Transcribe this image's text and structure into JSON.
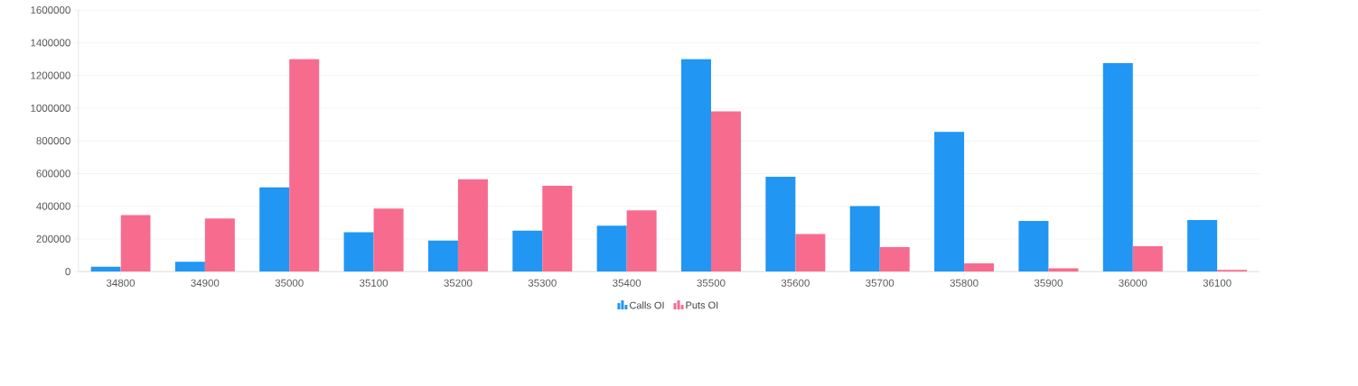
{
  "chart_data": {
    "type": "bar",
    "categories": [
      "34800",
      "34900",
      "35000",
      "35100",
      "35200",
      "35300",
      "35400",
      "35500",
      "35600",
      "35700",
      "35800",
      "35900",
      "36000",
      "36100"
    ],
    "series": [
      {
        "name": "Calls OI",
        "color": "#2196f3",
        "values": [
          30000,
          60000,
          515000,
          240000,
          190000,
          250000,
          280000,
          1300000,
          580000,
          400000,
          855000,
          310000,
          1275000,
          315000
        ]
      },
      {
        "name": "Puts OI",
        "color": "#f76c8e",
        "values": [
          345000,
          325000,
          1300000,
          385000,
          565000,
          525000,
          375000,
          980000,
          230000,
          150000,
          50000,
          20000,
          155000,
          10000
        ]
      }
    ],
    "ylim": [
      0,
      1600000
    ],
    "yticks": [
      0,
      200000,
      400000,
      600000,
      800000,
      1000000,
      1200000,
      1400000,
      1600000
    ],
    "grid": "y",
    "legend": "bottom"
  }
}
